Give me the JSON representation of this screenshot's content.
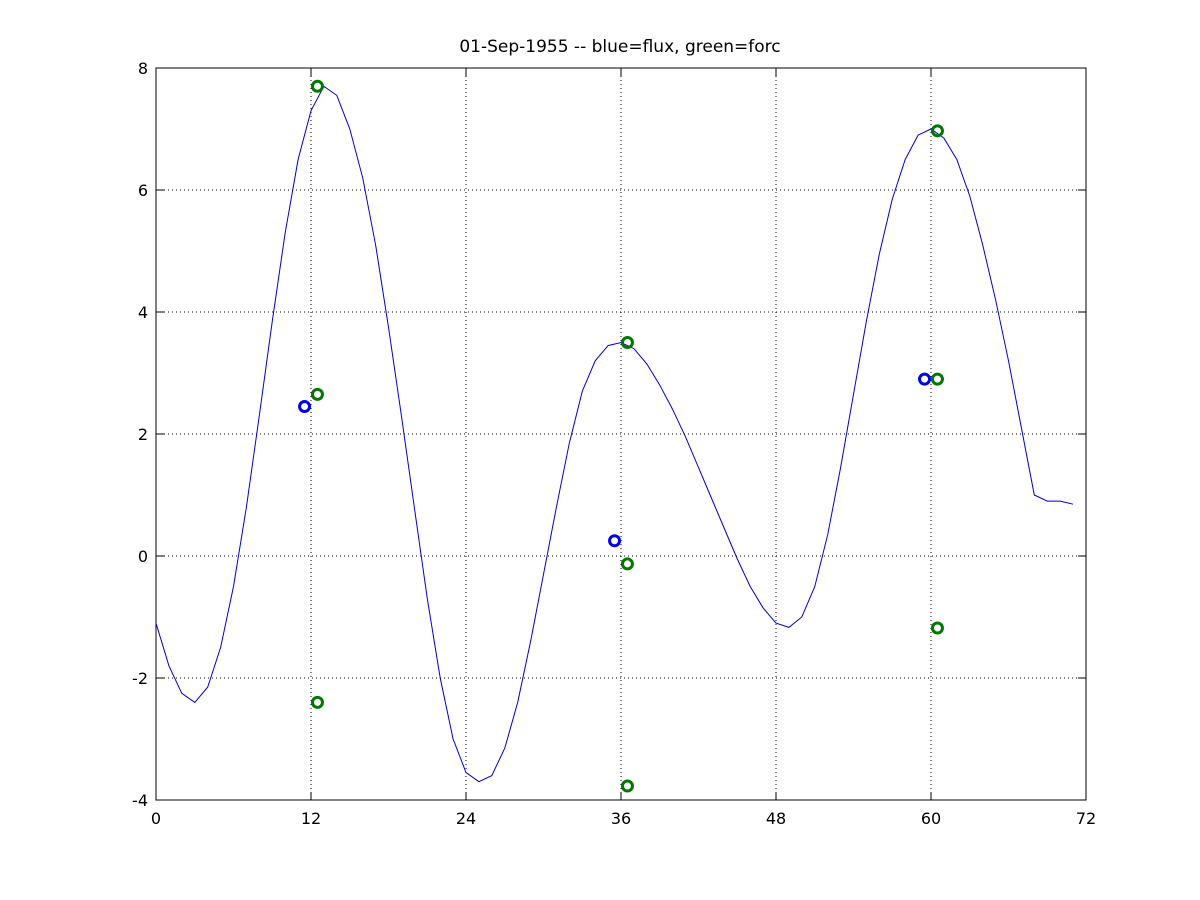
{
  "chart_data": {
    "type": "line",
    "title": "01-Sep-1955 -- blue=flux, green=forc",
    "xlabel": "",
    "ylabel": "",
    "xlim": [
      0,
      72
    ],
    "ylim": [
      -4,
      8
    ],
    "xticks": [
      0,
      12,
      24,
      36,
      48,
      60,
      72
    ],
    "yticks": [
      -4,
      -2,
      0,
      2,
      4,
      6,
      8
    ],
    "grid": true,
    "line_color": "#0000cc",
    "flux_color": "#0000ee",
    "forc_color": "#007700",
    "line": {
      "x": [
        0,
        1,
        2,
        3,
        4,
        5,
        6,
        7,
        8,
        9,
        10,
        11,
        12,
        13,
        14,
        15,
        16,
        17,
        18,
        19,
        20,
        21,
        22,
        23,
        24,
        25,
        26,
        27,
        28,
        29,
        30,
        31,
        32,
        33,
        34,
        35,
        36,
        37,
        38,
        39,
        40,
        41,
        42,
        43,
        44,
        45,
        46,
        47,
        48,
        49,
        50,
        51,
        52,
        53,
        54,
        55,
        56,
        57,
        58,
        59,
        60,
        61,
        62,
        63,
        64,
        65,
        66,
        67,
        68,
        69,
        70,
        71
      ],
      "y": [
        -1.1,
        -1.8,
        -2.25,
        -2.4,
        -2.15,
        -1.5,
        -0.5,
        0.8,
        2.3,
        3.85,
        5.3,
        6.5,
        7.3,
        7.7,
        7.55,
        7.0,
        6.2,
        5.1,
        3.75,
        2.3,
        0.8,
        -0.7,
        -2.0,
        -3.0,
        -3.55,
        -3.7,
        -3.6,
        -3.15,
        -2.4,
        -1.4,
        -0.3,
        0.8,
        1.85,
        2.7,
        3.2,
        3.45,
        3.5,
        3.4,
        3.15,
        2.8,
        2.4,
        1.95,
        1.45,
        0.95,
        0.45,
        -0.05,
        -0.5,
        -0.85,
        -1.1,
        -1.17,
        -1.0,
        -0.5,
        0.35,
        1.45,
        2.65,
        3.85,
        4.95,
        5.85,
        6.5,
        6.9,
        7.0,
        6.85,
        6.5,
        5.9,
        5.1,
        4.2,
        3.2,
        2.1,
        1.0,
        0.9,
        0.9,
        0.85
      ]
    },
    "flux_points": [
      {
        "x": 11.5,
        "y": 2.45
      },
      {
        "x": 35.5,
        "y": 0.25
      },
      {
        "x": 59.5,
        "y": 2.9
      }
    ],
    "forc_points": [
      {
        "x": 12.5,
        "y": 7.7
      },
      {
        "x": 12.5,
        "y": 2.65
      },
      {
        "x": 12.5,
        "y": -2.4
      },
      {
        "x": 36.5,
        "y": 3.5
      },
      {
        "x": 36.5,
        "y": -0.13
      },
      {
        "x": 36.5,
        "y": -3.77
      },
      {
        "x": 60.5,
        "y": 6.97
      },
      {
        "x": 60.5,
        "y": 2.9
      },
      {
        "x": 60.5,
        "y": -1.18
      }
    ]
  }
}
